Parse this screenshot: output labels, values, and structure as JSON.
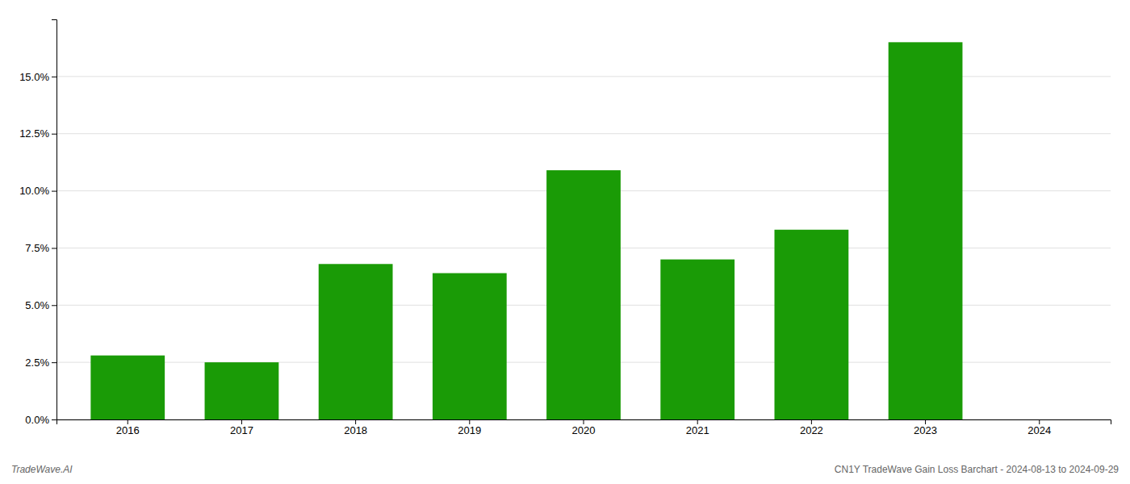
{
  "chart_data": {
    "type": "bar",
    "categories": [
      "2016",
      "2017",
      "2018",
      "2019",
      "2020",
      "2021",
      "2022",
      "2023",
      "2024"
    ],
    "values": [
      0.028,
      0.025,
      0.068,
      0.064,
      0.109,
      0.07,
      0.083,
      0.165,
      0.0
    ],
    "color": "#1a9b06",
    "ylim": [
      0.0,
      0.175
    ],
    "yticks": [
      {
        "value": 0.0,
        "label": "0.0%"
      },
      {
        "value": 0.025,
        "label": "2.5%"
      },
      {
        "value": 0.05,
        "label": "5.0%"
      },
      {
        "value": 0.075,
        "label": "7.5%"
      },
      {
        "value": 0.1,
        "label": "10.0%"
      },
      {
        "value": 0.125,
        "label": "12.5%"
      },
      {
        "value": 0.15,
        "label": "15.0%"
      }
    ],
    "grid": true,
    "annotations": [
      "TradeWave.AI",
      "CN1Y TradeWave Gain Loss Barchart - 2024-08-13 to 2024-09-29"
    ]
  }
}
